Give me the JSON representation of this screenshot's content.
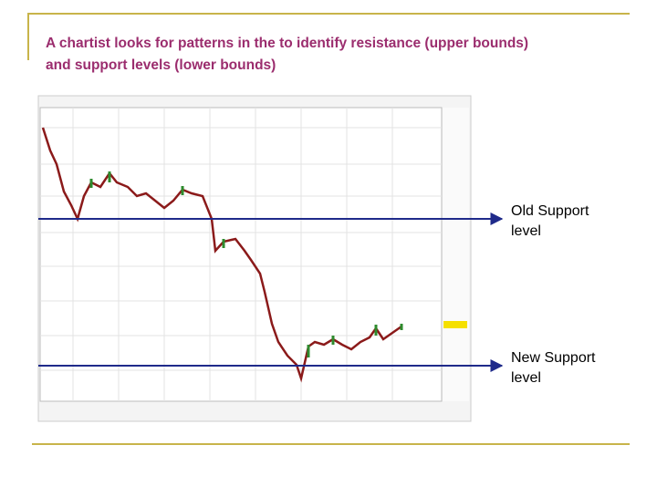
{
  "slide": {
    "title_lines": [
      "A chartist looks for patterns in the to identify resistance (upper bounds)",
      "and support levels (lower bounds)"
    ],
    "annotations": [
      {
        "lines": [
          "Old Support",
          "level"
        ]
      },
      {
        "lines": [
          "New Support",
          "level"
        ]
      }
    ]
  }
}
